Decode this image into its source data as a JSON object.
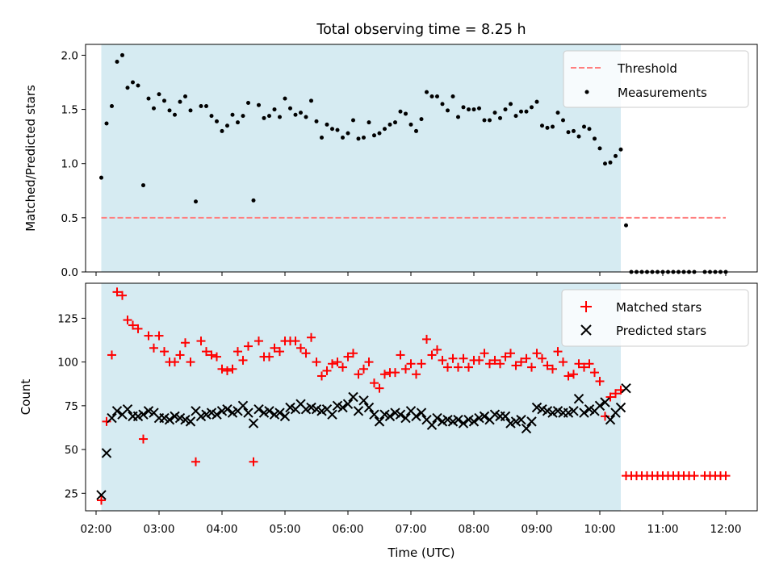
{
  "chart_data": [
    {
      "type": "scatter",
      "title": "Total observing time = 8.25 h",
      "xlabel": "",
      "ylabel": "Matched/Predicted stars",
      "ylim": [
        0,
        2.1
      ],
      "yticks": [
        "0.0",
        "0.5",
        "1.0",
        "1.5",
        "2.0"
      ],
      "xlim": [
        "01:50",
        "12:30"
      ],
      "shaded_span": {
        "start": "02:05",
        "end": "10:20",
        "color": "#add8e6"
      },
      "threshold": {
        "name": "Threshold",
        "value": 0.5,
        "from": "02:05",
        "to": "12:00",
        "color": "#ff7f7f"
      },
      "legend": {
        "position": "top-right",
        "entries": [
          "Threshold",
          "Measurements"
        ]
      },
      "series": [
        {
          "name": "Measurements",
          "color": "#000000",
          "marker": "dot",
          "x": [
            "02:05",
            "02:10",
            "02:15",
            "02:20",
            "02:25",
            "02:30",
            "02:35",
            "02:40",
            "02:45",
            "02:50",
            "02:55",
            "03:00",
            "03:05",
            "03:10",
            "03:15",
            "03:20",
            "03:25",
            "03:30",
            "03:35",
            "03:40",
            "03:45",
            "03:50",
            "03:55",
            "04:00",
            "04:05",
            "04:10",
            "04:15",
            "04:20",
            "04:25",
            "04:30",
            "04:35",
            "04:40",
            "04:45",
            "04:50",
            "04:55",
            "05:00",
            "05:05",
            "05:10",
            "05:15",
            "05:20",
            "05:25",
            "05:30",
            "05:35",
            "05:40",
            "05:45",
            "05:50",
            "05:55",
            "06:00",
            "06:05",
            "06:10",
            "06:15",
            "06:20",
            "06:25",
            "06:30",
            "06:35",
            "06:40",
            "06:45",
            "06:50",
            "06:55",
            "07:00",
            "07:05",
            "07:10",
            "07:15",
            "07:20",
            "07:25",
            "07:30",
            "07:35",
            "07:40",
            "07:45",
            "07:50",
            "07:55",
            "08:00",
            "08:05",
            "08:10",
            "08:15",
            "08:20",
            "08:25",
            "08:30",
            "08:35",
            "08:40",
            "08:45",
            "08:50",
            "08:55",
            "09:00",
            "09:05",
            "09:10",
            "09:15",
            "09:20",
            "09:25",
            "09:30",
            "09:35",
            "09:40",
            "09:45",
            "09:50",
            "09:55",
            "10:00",
            "10:05",
            "10:10",
            "10:15",
            "10:20",
            "10:25",
            "10:30",
            "10:35",
            "10:40",
            "10:45",
            "10:50",
            "10:55",
            "11:00",
            "11:05",
            "11:10",
            "11:15",
            "11:20",
            "11:25",
            "11:30",
            "11:40",
            "11:45",
            "11:50",
            "11:55",
            "12:00"
          ],
          "y": [
            0.87,
            1.37,
            1.53,
            1.94,
            2.0,
            1.7,
            1.75,
            1.72,
            0.8,
            1.6,
            1.51,
            1.64,
            1.58,
            1.49,
            1.45,
            1.57,
            1.62,
            1.49,
            0.65,
            1.53,
            1.53,
            1.44,
            1.39,
            1.3,
            1.35,
            1.45,
            1.38,
            1.44,
            1.56,
            0.66,
            1.54,
            1.42,
            1.44,
            1.5,
            1.43,
            1.6,
            1.51,
            1.45,
            1.47,
            1.43,
            1.58,
            1.39,
            1.24,
            1.36,
            1.32,
            1.31,
            1.24,
            1.28,
            1.4,
            1.23,
            1.24,
            1.38,
            1.26,
            1.28,
            1.32,
            1.36,
            1.38,
            1.48,
            1.46,
            1.36,
            1.3,
            1.41,
            1.66,
            1.62,
            1.62,
            1.55,
            1.49,
            1.62,
            1.43,
            1.52,
            1.5,
            1.5,
            1.51,
            1.4,
            1.4,
            1.47,
            1.42,
            1.5,
            1.55,
            1.44,
            1.48,
            1.48,
            1.52,
            1.57,
            1.35,
            1.33,
            1.34,
            1.47,
            1.4,
            1.29,
            1.3,
            1.25,
            1.34,
            1.32,
            1.23,
            1.14,
            1.0,
            1.01,
            1.07,
            1.13,
            0.43,
            0,
            0,
            0,
            0,
            0,
            0,
            0,
            0,
            0,
            0,
            0,
            0,
            0,
            0,
            0,
            0,
            0,
            0
          ]
        }
      ]
    },
    {
      "type": "scatter",
      "title": "",
      "xlabel": "Time (UTC)",
      "ylabel": "Count",
      "ylim": [
        15,
        145
      ],
      "yticks": [
        "25",
        "50",
        "75",
        "100",
        "125"
      ],
      "xlim": [
        "01:50",
        "12:30"
      ],
      "xticks": [
        "02:00",
        "03:00",
        "04:00",
        "05:00",
        "06:00",
        "07:00",
        "08:00",
        "09:00",
        "10:00",
        "11:00",
        "12:00"
      ],
      "shaded_span": {
        "start": "02:05",
        "end": "10:20",
        "color": "#add8e6"
      },
      "legend": {
        "position": "top-right",
        "entries": [
          "Matched stars",
          "Predicted stars"
        ]
      },
      "series": [
        {
          "name": "Matched stars",
          "color": "#ff0000",
          "marker": "plus",
          "x": [
            "02:05",
            "02:10",
            "02:15",
            "02:20",
            "02:25",
            "02:30",
            "02:35",
            "02:40",
            "02:45",
            "02:50",
            "02:55",
            "03:00",
            "03:05",
            "03:10",
            "03:15",
            "03:20",
            "03:25",
            "03:30",
            "03:35",
            "03:40",
            "03:45",
            "03:50",
            "03:55",
            "04:00",
            "04:05",
            "04:10",
            "04:15",
            "04:20",
            "04:25",
            "04:30",
            "04:35",
            "04:40",
            "04:45",
            "04:50",
            "04:55",
            "05:00",
            "05:05",
            "05:10",
            "05:15",
            "05:20",
            "05:25",
            "05:30",
            "05:35",
            "05:40",
            "05:45",
            "05:50",
            "05:55",
            "06:00",
            "06:05",
            "06:10",
            "06:15",
            "06:20",
            "06:25",
            "06:30",
            "06:35",
            "06:40",
            "06:45",
            "06:50",
            "06:55",
            "07:00",
            "07:05",
            "07:10",
            "07:15",
            "07:20",
            "07:25",
            "07:30",
            "07:35",
            "07:40",
            "07:45",
            "07:50",
            "07:55",
            "08:00",
            "08:05",
            "08:10",
            "08:15",
            "08:20",
            "08:25",
            "08:30",
            "08:35",
            "08:40",
            "08:45",
            "08:50",
            "08:55",
            "09:00",
            "09:05",
            "09:10",
            "09:15",
            "09:20",
            "09:25",
            "09:30",
            "09:35",
            "09:40",
            "09:45",
            "09:50",
            "09:55",
            "10:00",
            "10:05",
            "10:10",
            "10:15",
            "10:20",
            "10:25",
            "10:30",
            "10:35",
            "10:40",
            "10:45",
            "10:50",
            "10:55",
            "11:00",
            "11:05",
            "11:10",
            "11:15",
            "11:20",
            "11:25",
            "11:30",
            "11:40",
            "11:45",
            "11:50",
            "11:55",
            "12:00"
          ],
          "y": [
            21,
            66,
            104,
            140,
            138,
            124,
            121,
            119,
            56,
            115,
            108,
            115,
            106,
            100,
            100,
            104,
            111,
            100,
            43,
            112,
            106,
            104,
            103,
            96,
            95,
            96,
            106,
            101,
            109,
            43,
            112,
            103,
            103,
            108,
            106,
            112,
            112,
            112,
            108,
            105,
            114,
            100,
            92,
            95,
            99,
            100,
            97,
            103,
            105,
            93,
            96,
            100,
            88,
            85,
            93,
            94,
            94,
            104,
            96,
            99,
            93,
            99,
            113,
            104,
            107,
            101,
            97,
            102,
            97,
            102,
            97,
            101,
            101,
            105,
            99,
            101,
            99,
            103,
            105,
            98,
            100,
            102,
            97,
            105,
            102,
            98,
            96,
            106,
            100,
            92,
            93,
            99,
            97,
            99,
            94,
            89,
            69,
            80,
            82,
            84,
            35,
            35,
            35,
            35,
            35,
            35,
            35,
            35,
            35,
            35,
            35,
            35,
            35,
            35,
            35,
            35,
            35,
            35,
            35
          ]
        },
        {
          "name": "Predicted stars",
          "color": "#000000",
          "marker": "x",
          "x": [
            "02:05",
            "02:10",
            "02:15",
            "02:20",
            "02:25",
            "02:30",
            "02:35",
            "02:40",
            "02:45",
            "02:50",
            "02:55",
            "03:00",
            "03:05",
            "03:10",
            "03:15",
            "03:20",
            "03:25",
            "03:30",
            "03:35",
            "03:40",
            "03:45",
            "03:50",
            "03:55",
            "04:00",
            "04:05",
            "04:10",
            "04:15",
            "04:20",
            "04:25",
            "04:30",
            "04:35",
            "04:40",
            "04:45",
            "04:50",
            "04:55",
            "05:00",
            "05:05",
            "05:10",
            "05:15",
            "05:20",
            "05:25",
            "05:30",
            "05:35",
            "05:40",
            "05:45",
            "05:50",
            "05:55",
            "06:00",
            "06:05",
            "06:10",
            "06:15",
            "06:20",
            "06:25",
            "06:30",
            "06:35",
            "06:40",
            "06:45",
            "06:50",
            "06:55",
            "07:00",
            "07:05",
            "07:10",
            "07:15",
            "07:20",
            "07:25",
            "07:30",
            "07:35",
            "07:40",
            "07:45",
            "07:50",
            "07:55",
            "08:00",
            "08:05",
            "08:10",
            "08:15",
            "08:20",
            "08:25",
            "08:30",
            "08:35",
            "08:40",
            "08:45",
            "08:50",
            "08:55",
            "09:00",
            "09:05",
            "09:10",
            "09:15",
            "09:20",
            "09:25",
            "09:30",
            "09:35",
            "09:40",
            "09:45",
            "09:50",
            "09:55",
            "10:00",
            "10:05",
            "10:10",
            "10:15",
            "10:20",
            "10:25"
          ],
          "y": [
            24,
            48,
            68,
            72,
            70,
            73,
            69,
            69,
            70,
            72,
            71,
            68,
            68,
            67,
            69,
            68,
            67,
            66,
            72,
            69,
            70,
            71,
            70,
            72,
            73,
            71,
            72,
            75,
            71,
            65,
            73,
            71,
            72,
            70,
            71,
            69,
            74,
            73,
            76,
            73,
            74,
            73,
            72,
            73,
            70,
            75,
            74,
            76,
            80,
            72,
            78,
            74,
            70,
            66,
            70,
            69,
            71,
            70,
            68,
            72,
            69,
            71,
            67,
            64,
            68,
            66,
            67,
            66,
            67,
            65,
            67,
            66,
            68,
            69,
            67,
            70,
            69,
            69,
            65,
            66,
            67,
            62,
            66,
            74,
            73,
            72,
            71,
            72,
            71,
            71,
            72,
            79,
            71,
            73,
            72,
            75,
            77,
            67,
            71,
            74,
            85
          ]
        }
      ]
    }
  ]
}
